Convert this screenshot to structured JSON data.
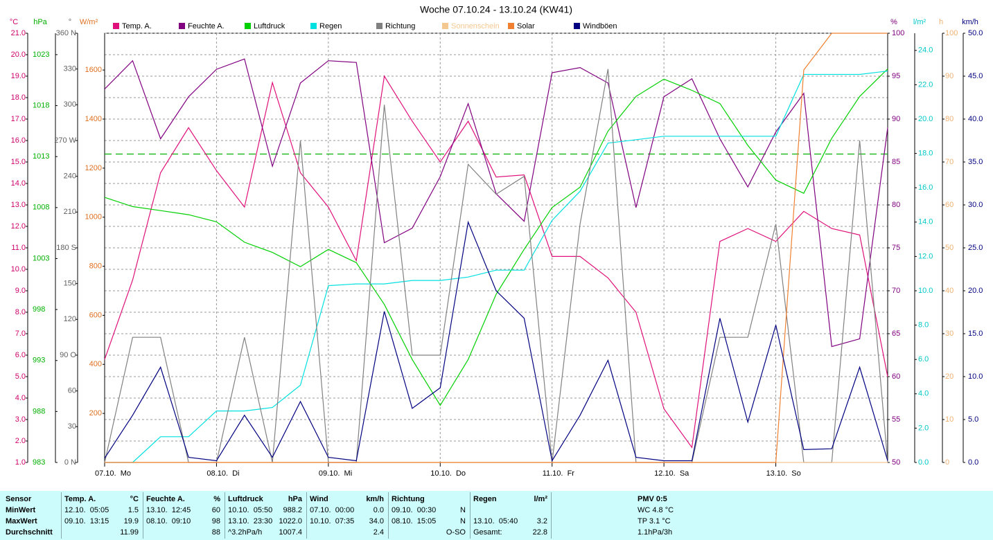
{
  "chart_data": {
    "type": "line",
    "title": "Woche 07.10.24 - 13.10.24 (KW41)",
    "grid": true,
    "xlim": [
      0,
      168
    ],
    "xticks": [
      {
        "value": 0,
        "label": "07.10.  Mo"
      },
      {
        "value": 24,
        "label": "08.10.  Di"
      },
      {
        "value": 48,
        "label": "09.10.  Mi"
      },
      {
        "value": 72,
        "label": "10.10.  Do"
      },
      {
        "value": 96,
        "label": "11.10.  Fr"
      },
      {
        "value": 120,
        "label": "12.10.  Sa"
      },
      {
        "value": 144,
        "label": "13.10.  So"
      }
    ],
    "axes": [
      {
        "unit": "°C",
        "color": "#d0006a",
        "ylim": [
          1,
          21
        ],
        "yticks": [
          {
            "value": 1,
            "label": "1.0"
          },
          {
            "value": 2,
            "label": "2.0"
          },
          {
            "value": 3,
            "label": "3.0"
          },
          {
            "value": 4,
            "label": "4.0"
          },
          {
            "value": 5,
            "label": "5.0"
          },
          {
            "value": 6,
            "label": "6.0"
          },
          {
            "value": 7,
            "label": "7.0"
          },
          {
            "value": 8,
            "label": "8.0"
          },
          {
            "value": 9,
            "label": "9.0"
          },
          {
            "value": 10,
            "label": "10.0"
          },
          {
            "value": 11,
            "label": "11.0"
          },
          {
            "value": 12,
            "label": "12.0"
          },
          {
            "value": 13,
            "label": "13.0"
          },
          {
            "value": 14,
            "label": "14.0"
          },
          {
            "value": 15,
            "label": "15.0"
          },
          {
            "value": 16,
            "label": "16.0"
          },
          {
            "value": 17,
            "label": "17.0"
          },
          {
            "value": 18,
            "label": "18.0"
          },
          {
            "value": 19,
            "label": "19.0"
          },
          {
            "value": 20,
            "label": "20.0"
          },
          {
            "value": 21,
            "label": "21.0"
          }
        ]
      },
      {
        "unit": "hPa",
        "color": "#00b000",
        "ylim": [
          983,
          1025.1
        ],
        "yticks": [
          983,
          988,
          993,
          998,
          1003,
          1008,
          1013,
          1018,
          1023
        ]
      },
      {
        "unit": "°",
        "color": "#606060",
        "ylim": [
          0,
          360
        ],
        "yticks": [
          {
            "value": 0,
            "label": "0 N"
          },
          30,
          60,
          {
            "value": 90,
            "label": "90 O"
          },
          120,
          150,
          {
            "value": 180,
            "label": "180 S"
          },
          210,
          240,
          {
            "value": 270,
            "label": "270 W"
          },
          300,
          330,
          {
            "value": 360,
            "label": "360 N"
          }
        ]
      },
      {
        "unit": "W/m²",
        "color": "#e07020",
        "ylim": [
          0,
          1750
        ],
        "yticks": [
          200,
          400,
          600,
          800,
          1000,
          1200,
          1400,
          1600
        ]
      },
      {
        "unit": "%",
        "color": "#800080",
        "ylim": [
          50,
          100
        ],
        "yticks": [
          50,
          55,
          60,
          65,
          70,
          75,
          80,
          85,
          90,
          95,
          100
        ]
      },
      {
        "unit": "l/m²",
        "color": "#00c8c8",
        "ylim": [
          0,
          25
        ],
        "yticks": [
          {
            "value": 0,
            "label": "0.0"
          },
          {
            "value": 2,
            "label": "2.0"
          },
          {
            "value": 4,
            "label": "4.0"
          },
          {
            "value": 6,
            "label": "6.0"
          },
          {
            "value": 8,
            "label": "8.0"
          },
          {
            "value": 10,
            "label": "10.0"
          },
          {
            "value": 12,
            "label": "12.0"
          },
          {
            "value": 14,
            "label": "14.0"
          },
          {
            "value": 16,
            "label": "16.0"
          },
          {
            "value": 18,
            "label": "18.0"
          },
          {
            "value": 20,
            "label": "20.0"
          },
          {
            "value": 22,
            "label": "22.0"
          },
          {
            "value": 24,
            "label": "24.0"
          }
        ]
      },
      {
        "unit": "h",
        "color": "#f0b070",
        "ylim": [
          0,
          100
        ],
        "yticks": [
          0,
          10,
          20,
          30,
          40,
          50,
          60,
          70,
          80,
          90,
          100
        ]
      },
      {
        "unit": "km/h",
        "color": "#000080",
        "ylim": [
          0,
          50
        ],
        "yticks": [
          {
            "value": 0,
            "label": "0.0"
          },
          {
            "value": 5,
            "label": "5.0"
          },
          {
            "value": 10,
            "label": "10.0"
          },
          {
            "value": 15,
            "label": "15.0"
          },
          {
            "value": 20,
            "label": "20.0"
          },
          {
            "value": 25,
            "label": "25.0"
          },
          {
            "value": 30,
            "label": "30.0"
          },
          {
            "value": 35,
            "label": "35.0"
          },
          {
            "value": 40,
            "label": "40.0"
          },
          {
            "value": 45,
            "label": "45.0"
          },
          {
            "value": 50,
            "label": "50.0"
          }
        ]
      }
    ],
    "x": [
      0,
      6,
      12,
      18,
      24,
      30,
      36,
      42,
      48,
      54,
      60,
      66,
      72,
      78,
      84,
      90,
      96,
      102,
      108,
      114,
      120,
      126,
      132,
      138,
      144,
      150,
      156,
      162,
      168
    ],
    "series": [
      {
        "name": "Temp. A.",
        "color": "#e0107a",
        "axis": 0,
        "values": [
          5.8,
          9.5,
          14.5,
          16.6,
          14.6,
          12.9,
          18.7,
          14.5,
          12.9,
          10.4,
          19.0,
          16.9,
          15.0,
          16.9,
          14.3,
          14.4,
          10.6,
          10.6,
          9.6,
          8.0,
          3.5,
          1.7,
          11.3,
          11.9,
          11.3,
          12.7,
          11.9,
          11.6,
          5.0
        ]
      },
      {
        "name": "Feuchte A.",
        "color": "#800080",
        "axis": 4,
        "values": [
          93.5,
          96.8,
          87.7,
          92.6,
          95.8,
          97.0,
          84.5,
          94.2,
          96.8,
          96.6,
          75.6,
          77.3,
          83.3,
          91.8,
          81.3,
          78.1,
          95.4,
          96.0,
          94.2,
          79.7,
          92.6,
          94.7,
          87.7,
          82.1,
          88.5,
          93.0,
          63.5,
          64.4,
          89.0
        ]
      },
      {
        "name": "Luftdruck",
        "color": "#00d000",
        "axis": 1,
        "values": [
          1009.0,
          1008.1,
          1007.7,
          1007.3,
          1006.6,
          1004.6,
          1003.6,
          1002.2,
          1003.9,
          1002.6,
          998.5,
          993.1,
          988.6,
          993.1,
          999.5,
          1003.9,
          1008.0,
          1010.0,
          1015.5,
          1018.9,
          1020.6,
          1019.5,
          1018.2,
          1014.1,
          1010.7,
          1009.4,
          1014.8,
          1018.9,
          1021.6
        ]
      },
      {
        "name": "Regen",
        "color": "#00e0e0",
        "axis": 5,
        "values": [
          0,
          0,
          1.5,
          1.5,
          3.0,
          3.0,
          3.2,
          4.5,
          10.3,
          10.4,
          10.4,
          10.6,
          10.6,
          10.8,
          11.2,
          11.2,
          14.1,
          15.8,
          18.6,
          18.8,
          19.0,
          19.0,
          19.0,
          19.0,
          19.0,
          22.6,
          22.6,
          22.6,
          22.8
        ]
      },
      {
        "name": "Richtung",
        "color": "#808080",
        "axis": 2,
        "values": [
          0,
          105,
          105,
          0,
          0,
          105,
          0,
          270,
          0,
          0,
          300,
          90,
          90,
          250,
          225,
          240,
          0,
          200,
          330,
          0,
          0,
          0,
          105,
          105,
          200,
          0,
          0,
          270,
          0
        ]
      },
      {
        "name": "Sonnenschein",
        "color": "#f5c890",
        "axis": 6,
        "values": [
          0,
          0,
          0,
          0,
          0,
          0,
          0,
          0,
          0,
          0,
          0,
          0,
          0,
          0,
          0,
          0,
          0,
          0,
          0,
          0,
          0,
          0,
          0,
          0,
          0,
          0,
          0,
          0,
          0
        ]
      },
      {
        "name": "Solar",
        "color": "#f08030",
        "axis": 3,
        "values": [
          0,
          0,
          0,
          0,
          0,
          0,
          0,
          0,
          0,
          0,
          0,
          0,
          0,
          0,
          0,
          0,
          0,
          0,
          0,
          0,
          0,
          0,
          0,
          0,
          0,
          1600,
          1750,
          1750,
          1750
        ]
      },
      {
        "name": "Windböen",
        "color": "#000080",
        "axis": 7,
        "values": [
          0.5,
          5.5,
          11.1,
          0.6,
          0.2,
          5.5,
          0.6,
          7.1,
          0.6,
          0.2,
          17.6,
          6.3,
          8.7,
          28.0,
          20.0,
          16.8,
          0.2,
          5.5,
          11.9,
          0.6,
          0.2,
          0.2,
          16.8,
          4.7,
          16.0,
          1.5,
          1.6,
          11.1,
          0.2
        ]
      }
    ],
    "reference_lines": [
      {
        "axis": 1,
        "value": 1013.25,
        "color": "#00b000"
      }
    ]
  },
  "table": {
    "sensor": "Sensor",
    "row_labels": [
      "MinWert",
      "MaxWert",
      "Durchschnitt"
    ],
    "columns": [
      {
        "name": "Temp. A.",
        "unit": "°C",
        "min": {
          "time": "12.10.  05:05",
          "value": "1.5"
        },
        "max": {
          "time": "09.10.  13:15",
          "value": "19.9"
        },
        "avg": {
          "value": "11.99"
        }
      },
      {
        "name": "Feuchte A.",
        "unit": "%",
        "min": {
          "time": "13.10.  12:45",
          "value": "60"
        },
        "max": {
          "time": "08.10.  09:10",
          "value": "98"
        },
        "avg": {
          "value": "88"
        }
      },
      {
        "name": "Luftdruck",
        "unit": "hPa",
        "min": {
          "time": "10.10.  05:50",
          "value": "988.2"
        },
        "max": {
          "time": "13.10.  23:30",
          "value": "1022.0"
        },
        "avg": {
          "time": "^3.2hPa/h",
          "value": "1007.4"
        }
      },
      {
        "name": "Wind",
        "unit": "km/h",
        "min": {
          "time": "07.10.  00:00",
          "value": "0.0"
        },
        "max": {
          "time": "10.10.  07:35",
          "value": "34.0"
        },
        "avg": {
          "value": "2.4"
        }
      },
      {
        "name": "Richtung",
        "min": {
          "time": "09.10.  00:30",
          "value": "N"
        },
        "max": {
          "time": "08.10.  15:05",
          "value": "N"
        },
        "avg": {
          "value": "O-SO"
        }
      },
      {
        "name": "Regen",
        "unit": "l/m²",
        "max": {
          "time": "13.10.  05:40",
          "value": "3.2"
        },
        "avg": {
          "time": "Gesamt:",
          "value": "22.8"
        }
      }
    ],
    "pmv": {
      "title": "PMV 0:5",
      "lines": [
        "WC 4.8 °C",
        "TP 3.1 °C",
        "1.1hPa/3h"
      ]
    }
  }
}
